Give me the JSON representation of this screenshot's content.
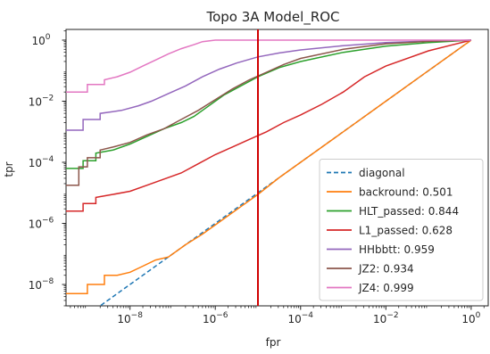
{
  "chart_data": {
    "type": "line",
    "title": "Topo 3A Model_ROC",
    "xlabel": "fpr",
    "ylabel": "tpr",
    "xscale": "log",
    "yscale": "log",
    "xlim_exp": [
      -9.5,
      0.4
    ],
    "ylim_exp": [
      -8.7,
      0.35
    ],
    "x_ticks": [
      {
        "exp": -8,
        "base": "10",
        "sup": "−8"
      },
      {
        "exp": -6,
        "base": "10",
        "sup": "−6"
      },
      {
        "exp": -4,
        "base": "10",
        "sup": "−4"
      },
      {
        "exp": -2,
        "base": "10",
        "sup": "−2"
      },
      {
        "exp": 0,
        "base": "10",
        "sup": "0"
      }
    ],
    "y_ticks": [
      {
        "exp": 0,
        "base": "10",
        "sup": "0"
      },
      {
        "exp": -2,
        "base": "10",
        "sup": "−2"
      },
      {
        "exp": -4,
        "base": "10",
        "sup": "−4"
      },
      {
        "exp": -6,
        "base": "10",
        "sup": "−6"
      },
      {
        "exp": -8,
        "base": "10",
        "sup": "−8"
      }
    ],
    "vline": {
      "x_exp": -5,
      "color": "#d00000"
    },
    "legend_position": "lower-right",
    "series": [
      {
        "name": "diagonal",
        "color": "#1f77b4",
        "dash": true,
        "points": [
          [
            -9.5,
            -9.5
          ],
          [
            0,
            0
          ]
        ]
      },
      {
        "name": "backround: 0.501",
        "color": "#ff7f0e",
        "points": [
          [
            -9.5,
            -8.3
          ],
          [
            -9.0,
            -8.3
          ],
          [
            -9.0,
            -8.0
          ],
          [
            -8.6,
            -8.0
          ],
          [
            -8.6,
            -7.7
          ],
          [
            -8.3,
            -7.7
          ],
          [
            -8.0,
            -7.6
          ],
          [
            -7.7,
            -7.4
          ],
          [
            -7.4,
            -7.2
          ],
          [
            -7.1,
            -7.1
          ],
          [
            -6.7,
            -6.7
          ],
          [
            -6.3,
            -6.35
          ],
          [
            -5.8,
            -5.85
          ],
          [
            -5.4,
            -5.45
          ],
          [
            -5.0,
            -5.05
          ],
          [
            -4.5,
            -4.5
          ],
          [
            -4.0,
            -4.0
          ],
          [
            -3.0,
            -3.0
          ],
          [
            -2.0,
            -2.0
          ],
          [
            -1.0,
            -1.0
          ],
          [
            0,
            0
          ]
        ]
      },
      {
        "name": "HLT_passed: 0.844",
        "color": "#2ca02c",
        "points": [
          [
            -9.5,
            -4.2
          ],
          [
            -9.1,
            -4.2
          ],
          [
            -9.1,
            -3.95
          ],
          [
            -8.8,
            -3.95
          ],
          [
            -8.8,
            -3.7
          ],
          [
            -8.4,
            -3.6
          ],
          [
            -8.0,
            -3.4
          ],
          [
            -7.6,
            -3.15
          ],
          [
            -7.2,
            -2.9
          ],
          [
            -6.8,
            -2.7
          ],
          [
            -6.5,
            -2.5
          ],
          [
            -6.2,
            -2.2
          ],
          [
            -5.8,
            -1.8
          ],
          [
            -5.4,
            -1.5
          ],
          [
            -5.0,
            -1.2
          ],
          [
            -4.5,
            -0.9
          ],
          [
            -4.0,
            -0.7
          ],
          [
            -3.0,
            -0.4
          ],
          [
            -2.0,
            -0.2
          ],
          [
            -1.0,
            -0.08
          ],
          [
            0,
            0
          ]
        ]
      },
      {
        "name": "L1_passed: 0.628",
        "color": "#d62728",
        "points": [
          [
            -9.5,
            -5.6
          ],
          [
            -9.1,
            -5.6
          ],
          [
            -9.1,
            -5.35
          ],
          [
            -8.8,
            -5.35
          ],
          [
            -8.8,
            -5.15
          ],
          [
            -8.4,
            -5.05
          ],
          [
            -8.0,
            -4.95
          ],
          [
            -7.6,
            -4.75
          ],
          [
            -7.2,
            -4.55
          ],
          [
            -6.8,
            -4.35
          ],
          [
            -6.4,
            -4.05
          ],
          [
            -6.0,
            -3.75
          ],
          [
            -5.6,
            -3.5
          ],
          [
            -5.2,
            -3.25
          ],
          [
            -4.8,
            -3.0
          ],
          [
            -4.4,
            -2.7
          ],
          [
            -4.0,
            -2.45
          ],
          [
            -3.5,
            -2.1
          ],
          [
            -3.0,
            -1.7
          ],
          [
            -2.5,
            -1.2
          ],
          [
            -2.0,
            -0.85
          ],
          [
            -1.0,
            -0.35
          ],
          [
            0,
            0
          ]
        ]
      },
      {
        "name": "HHbbtt: 0.959",
        "color": "#9467bd",
        "points": [
          [
            -9.5,
            -2.95
          ],
          [
            -9.1,
            -2.95
          ],
          [
            -9.1,
            -2.6
          ],
          [
            -8.7,
            -2.6
          ],
          [
            -8.7,
            -2.4
          ],
          [
            -8.2,
            -2.3
          ],
          [
            -7.8,
            -2.15
          ],
          [
            -7.5,
            -2.0
          ],
          [
            -7.1,
            -1.75
          ],
          [
            -6.7,
            -1.5
          ],
          [
            -6.3,
            -1.2
          ],
          [
            -5.9,
            -0.95
          ],
          [
            -5.5,
            -0.75
          ],
          [
            -5.0,
            -0.55
          ],
          [
            -4.5,
            -0.42
          ],
          [
            -4.0,
            -0.32
          ],
          [
            -3.0,
            -0.18
          ],
          [
            -2.0,
            -0.08
          ],
          [
            -1.0,
            -0.03
          ],
          [
            0,
            0
          ]
        ]
      },
      {
        "name": "JZ2: 0.934",
        "color": "#8c564b",
        "points": [
          [
            -9.5,
            -4.75
          ],
          [
            -9.2,
            -4.75
          ],
          [
            -9.2,
            -4.15
          ],
          [
            -9.0,
            -4.15
          ],
          [
            -9.0,
            -3.85
          ],
          [
            -8.7,
            -3.85
          ],
          [
            -8.7,
            -3.6
          ],
          [
            -8.4,
            -3.5
          ],
          [
            -8.0,
            -3.35
          ],
          [
            -7.6,
            -3.1
          ],
          [
            -7.2,
            -2.9
          ],
          [
            -6.8,
            -2.6
          ],
          [
            -6.4,
            -2.3
          ],
          [
            -6.0,
            -1.95
          ],
          [
            -5.6,
            -1.6
          ],
          [
            -5.2,
            -1.3
          ],
          [
            -4.8,
            -1.05
          ],
          [
            -4.4,
            -0.8
          ],
          [
            -4.0,
            -0.6
          ],
          [
            -3.0,
            -0.3
          ],
          [
            -2.0,
            -0.12
          ],
          [
            -1.0,
            -0.04
          ],
          [
            0,
            0
          ]
        ]
      },
      {
        "name": "JZ4: 0.999",
        "color": "#e377c2",
        "points": [
          [
            -9.5,
            -1.7
          ],
          [
            -9.0,
            -1.7
          ],
          [
            -9.0,
            -1.45
          ],
          [
            -8.6,
            -1.45
          ],
          [
            -8.6,
            -1.3
          ],
          [
            -8.3,
            -1.2
          ],
          [
            -8.0,
            -1.05
          ],
          [
            -7.7,
            -0.85
          ],
          [
            -7.4,
            -0.65
          ],
          [
            -7.1,
            -0.45
          ],
          [
            -6.8,
            -0.28
          ],
          [
            -6.5,
            -0.15
          ],
          [
            -6.3,
            -0.05
          ],
          [
            -6.0,
            0
          ],
          [
            0,
            0
          ]
        ]
      }
    ]
  }
}
